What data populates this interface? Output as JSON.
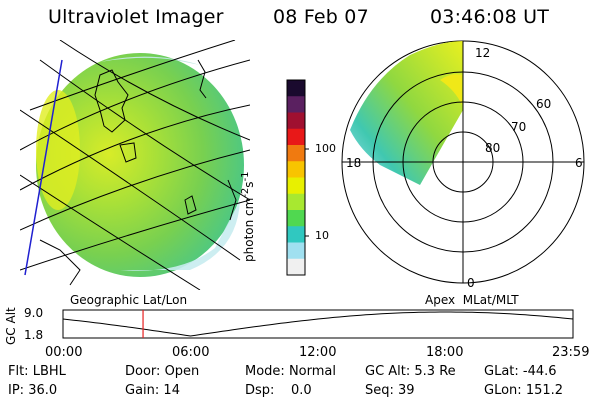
{
  "header": {
    "title": "Ultraviolet Imager",
    "date": "08 Feb 07",
    "time": "03:46:08 UT"
  },
  "geographic_panel": {
    "label": "Geographic Lat/Lon"
  },
  "apex_panel": {
    "label": "Apex  MLat/MLT",
    "mlt_labels": {
      "top": "12",
      "bottom": "0",
      "left": "18",
      "right": "6"
    },
    "mlat_labels": [
      "60",
      "70",
      "80"
    ]
  },
  "colorbar": {
    "unit_main": "photon cm",
    "unit_sup1": "-2",
    "unit_mid": "s",
    "unit_sup2": "-1",
    "ticks": [
      "100",
      "10"
    ],
    "colors": [
      "#1a0a2e",
      "#5a2060",
      "#a01030",
      "#e81818",
      "#f07a10",
      "#f8c400",
      "#e8f000",
      "#a8e830",
      "#50d850",
      "#30c8c0",
      "#a0e0f0",
      "#f0f0f0"
    ]
  },
  "gc_alt_plot": {
    "axis_title": "GC Alt",
    "y_ticks": [
      "9.0",
      "1.8"
    ],
    "x_ticks": [
      "00:00",
      "06:00",
      "12:00",
      "18:00",
      "23:59"
    ],
    "marker_time": "03:46",
    "line_color": "#e82020"
  },
  "status": {
    "row1": [
      {
        "label": "Flt:",
        "value": "LBHL"
      },
      {
        "label": "Door:",
        "value": "Open"
      },
      {
        "label": "Mode:",
        "value": "Normal"
      },
      {
        "label": "GC Alt:",
        "value": "5.3 Re"
      },
      {
        "label": "GLat:",
        "value": "-44.6"
      }
    ],
    "row2": [
      {
        "label": "IP:",
        "value": "36.0"
      },
      {
        "label": "Gain:",
        "value": "14"
      },
      {
        "label": "Dsp:",
        "value": "0.0"
      },
      {
        "label": "Seq:",
        "value": "39"
      },
      {
        "label": "GLon:",
        "value": "151.2"
      }
    ]
  },
  "theme": {
    "grid_color": "#000000",
    "globe_green": "#8ed848",
    "globe_yellow": "#e8f020",
    "globe_cyan": "#40c8c8",
    "edge_blue": "#2020d0"
  }
}
